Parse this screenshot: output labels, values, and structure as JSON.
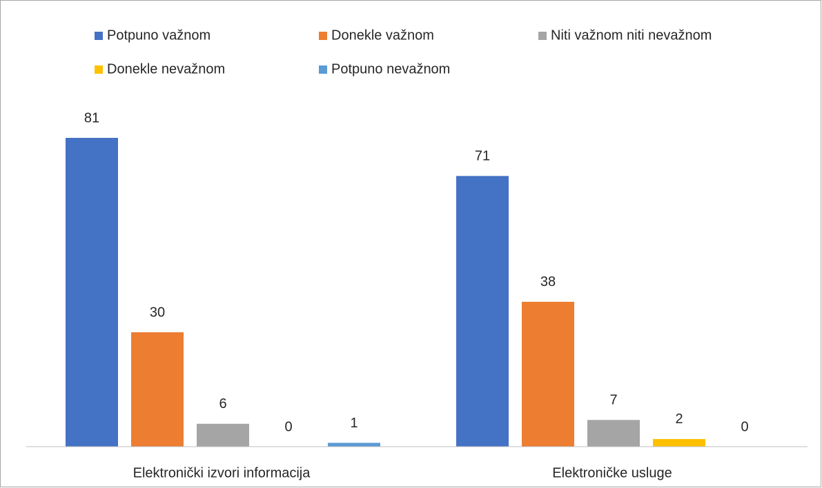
{
  "chart_data": {
    "type": "bar",
    "categories": [
      "Elektronički izvori informacija",
      "Elektroničke usluge"
    ],
    "series": [
      {
        "name": "Potpuno važnom",
        "color": "#4472c4",
        "values": [
          81,
          71
        ]
      },
      {
        "name": "Donekle važnom",
        "color": "#ed7d31",
        "values": [
          30,
          38
        ]
      },
      {
        "name": "Niti važnom niti nevažnom",
        "color": "#a5a5a5",
        "values": [
          6,
          7
        ]
      },
      {
        "name": "Donekle nevažnom",
        "color": "#ffc000",
        "values": [
          0,
          2
        ]
      },
      {
        "name": "Potpuno nevažnom",
        "color": "#5b9bd5",
        "values": [
          1,
          0
        ]
      }
    ],
    "legend": "top"
  }
}
